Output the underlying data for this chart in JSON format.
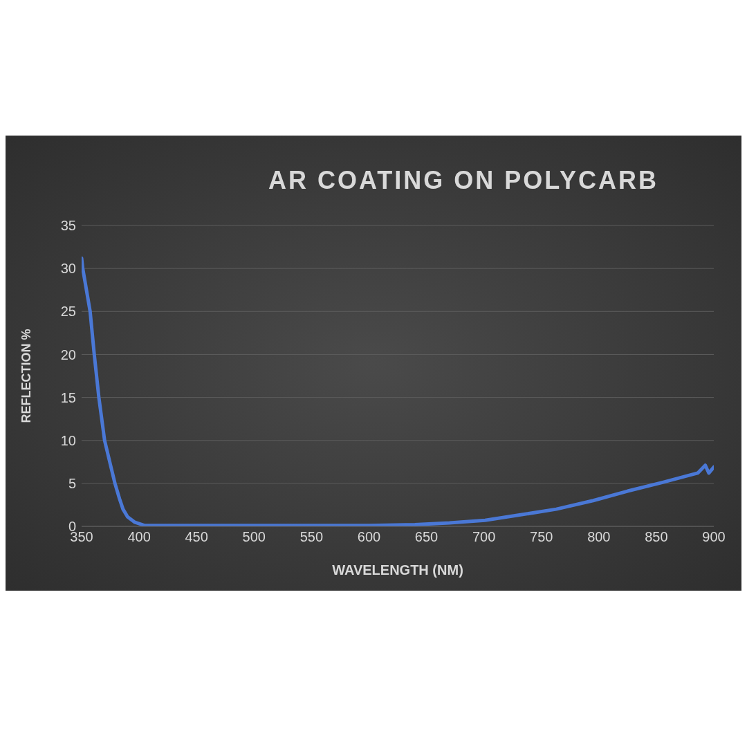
{
  "chart_data": {
    "type": "line",
    "title": "AR COATING ON POLYCARB",
    "xlabel": "WAVELENGTH (NM)",
    "ylabel": "REFLECTION %",
    "x": [
      350,
      351,
      357.4,
      361,
      365,
      370,
      375,
      379,
      383,
      386,
      390,
      396,
      405,
      415,
      450,
      500,
      550,
      600,
      640,
      670,
      701,
      730,
      763,
      795,
      825,
      855,
      886,
      892.6,
      895.7,
      900
    ],
    "series": [
      {
        "color": "#4a78d6",
        "values": [
          31.2,
          30,
          25,
          20,
          15,
          10,
          7.2,
          5,
          3.2,
          2,
          1.1,
          0.5,
          0.1,
          0.1,
          0.1,
          0.1,
          0.1,
          0.1,
          0.2,
          0.4,
          0.7,
          1.3,
          2.0,
          3.0,
          4.1,
          5.1,
          6.2,
          7.1,
          6.2,
          6.9
        ]
      }
    ],
    "xlim": [
      350,
      900
    ],
    "xticks": [
      350,
      400,
      450,
      500,
      550,
      600,
      650,
      700,
      750,
      800,
      850,
      900
    ],
    "ylim": [
      0,
      35
    ],
    "yticks": [
      0,
      5,
      10,
      15,
      20,
      25,
      30,
      35
    ],
    "grid": "y",
    "legend": false,
    "marker": "none",
    "line_style": "solid"
  }
}
